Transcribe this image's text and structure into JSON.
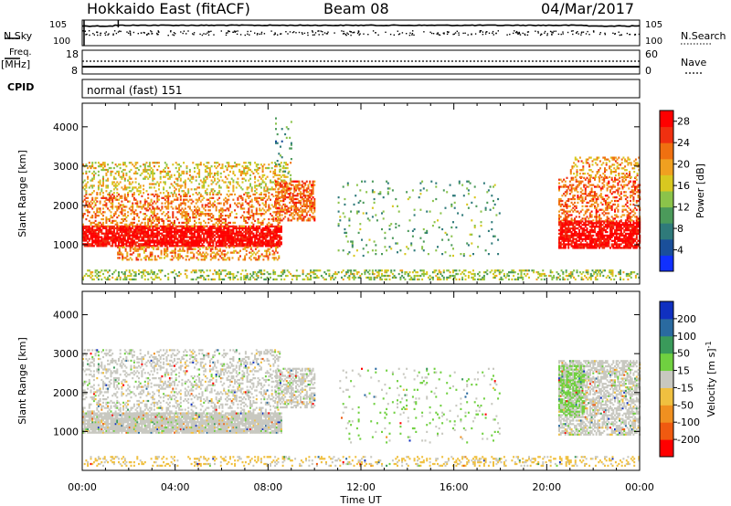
{
  "header": {
    "station": "Hokkaido East (fitACF)",
    "beam": "Beam 08",
    "date": "04/Mar/2017"
  },
  "top_panels": {
    "nsky_label": "N.Sky",
    "nsky_ticks": [
      "10^5",
      "10^0"
    ],
    "nsearch_label": "N.Search",
    "nsearch_ticks": [
      "10^5",
      "10^0"
    ],
    "freq_label": "Freq.",
    "freq_unit": "[MHz]",
    "freq_ticks": [
      "18",
      "8"
    ],
    "nave_label": "Nave",
    "nave_ticks": [
      "60",
      "0"
    ],
    "cpid_label": "CPID",
    "cpid_text": "normal (fast) 151"
  },
  "colors": {
    "power_scale": [
      "#1030ff",
      "#1a4f9a",
      "#2f7a7a",
      "#4b9a5a",
      "#8bc34a",
      "#d8c820",
      "#f0a020",
      "#f07010",
      "#f03010",
      "#ff0000"
    ],
    "velocity_scale": [
      "#ff0000",
      "#f05a10",
      "#f09020",
      "#f0c040",
      "#c8c8c0",
      "#70d040",
      "#3a9a5a",
      "#2a6aa0",
      "#1030c0"
    ]
  },
  "chart_data": [
    {
      "type": "heatmap",
      "name": "power",
      "xlabel": "",
      "ylabel": "Slant Range [km]",
      "x_domain_hours": [
        0,
        24
      ],
      "ylim": [
        0,
        4600
      ],
      "y_ticks": [
        1000,
        2000,
        3000,
        4000
      ],
      "colorbar": {
        "label": "Power [dB]",
        "ticks": [
          4,
          8,
          12,
          16,
          20,
          24,
          28
        ],
        "range": [
          0,
          30
        ]
      },
      "regions": [
        {
          "t0": 0.0,
          "t1": 8.6,
          "r0": 950,
          "r1": 1450,
          "value": 29,
          "density": 0.85
        },
        {
          "t0": 1.5,
          "t1": 8.5,
          "r0": 600,
          "r1": 950,
          "value": 21,
          "density": 0.35
        },
        {
          "t0": 0.0,
          "t1": 8.5,
          "r0": 1450,
          "r1": 2300,
          "value": 22,
          "density": 0.35
        },
        {
          "t0": 0.0,
          "t1": 9.0,
          "r0": 2300,
          "r1": 3100,
          "value": 17,
          "density": 0.28
        },
        {
          "t0": 8.3,
          "t1": 10.0,
          "r0": 1600,
          "r1": 2600,
          "value": 23,
          "density": 0.55
        },
        {
          "t0": 8.3,
          "t1": 9.0,
          "r0": 2800,
          "r1": 4200,
          "value": 10,
          "density": 0.1
        },
        {
          "t0": 11.0,
          "t1": 18.0,
          "r0": 700,
          "r1": 2600,
          "value": 11,
          "density": 0.05
        },
        {
          "t0": 0.0,
          "t1": 24.0,
          "r0": 100,
          "r1": 350,
          "value": 14,
          "density": 0.35
        },
        {
          "t0": 20.5,
          "t1": 24.0,
          "r0": 900,
          "r1": 1600,
          "value": 29,
          "density": 0.8
        },
        {
          "t0": 20.5,
          "t1": 24.0,
          "r0": 1600,
          "r1": 2700,
          "value": 23,
          "density": 0.4
        },
        {
          "t0": 21.0,
          "t1": 24.0,
          "r0": 2700,
          "r1": 3200,
          "value": 20,
          "density": 0.3
        }
      ]
    },
    {
      "type": "heatmap",
      "name": "velocity",
      "xlabel": "Time UT",
      "ylabel": "Slant Range [km]",
      "x_domain_hours": [
        0,
        24
      ],
      "x_ticks": [
        "00:00",
        "04:00",
        "08:00",
        "12:00",
        "16:00",
        "20:00",
        "00:00"
      ],
      "ylim": [
        0,
        4600
      ],
      "y_ticks": [
        1000,
        2000,
        3000,
        4000
      ],
      "colorbar": {
        "label": "Velocity [m s^-1]",
        "ticks": [
          200,
          100,
          50,
          15,
          -15,
          -50,
          -100,
          -200
        ]
      },
      "regions": [
        {
          "t0": 0.0,
          "t1": 8.6,
          "r0": 950,
          "r1": 1450,
          "value": 0,
          "density": 0.9
        },
        {
          "t0": 0.0,
          "t1": 8.5,
          "r0": 1450,
          "r1": 3100,
          "value": 0,
          "density": 0.3
        },
        {
          "t0": 8.3,
          "t1": 10.0,
          "r0": 1600,
          "r1": 2600,
          "value": 0,
          "density": 0.5
        },
        {
          "t0": 11.0,
          "t1": 18.0,
          "r0": 700,
          "r1": 2600,
          "value": 30,
          "density": 0.05
        },
        {
          "t0": 0.0,
          "t1": 24.0,
          "r0": 100,
          "r1": 350,
          "value": -40,
          "density": 0.25
        },
        {
          "t0": 20.5,
          "t1": 24.0,
          "r0": 900,
          "r1": 2800,
          "value": 0,
          "density": 0.6
        },
        {
          "t0": 20.5,
          "t1": 21.6,
          "r0": 1400,
          "r1": 2700,
          "value": 40,
          "density": 0.6
        }
      ]
    }
  ]
}
